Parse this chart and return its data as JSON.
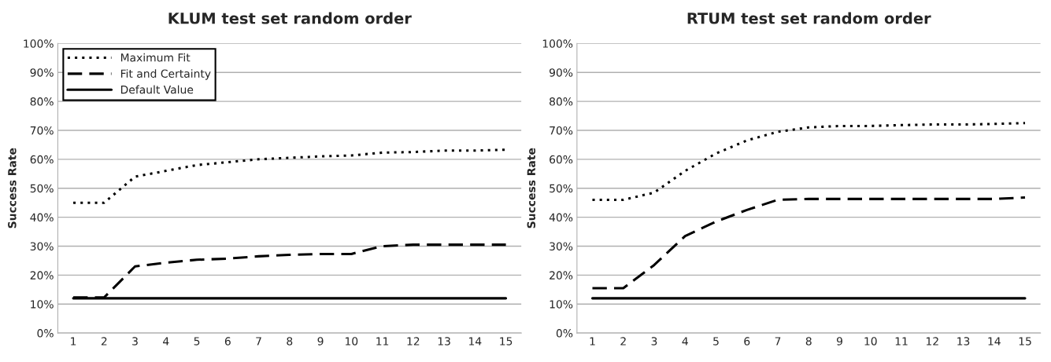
{
  "chart_data": [
    {
      "type": "line",
      "title": "KLUM test set random order",
      "ylabel": "Success Rate",
      "categories": [
        "1",
        "2",
        "3",
        "4",
        "5",
        "6",
        "7",
        "8",
        "9",
        "10",
        "11",
        "12",
        "13",
        "14",
        "15"
      ],
      "series": [
        {
          "name": "Maximum Fit",
          "color": "#000000",
          "line_style": "dotted",
          "values": [
            45,
            45,
            54,
            56,
            58,
            59,
            60,
            60.5,
            61,
            61.3,
            62.3,
            62.5,
            63,
            63,
            63.3
          ]
        },
        {
          "name": "Fit and Certainty",
          "color": "#000000",
          "line_style": "dashed",
          "values": [
            12.3,
            12.3,
            23,
            24.3,
            25.3,
            25.7,
            26.5,
            27,
            27.3,
            27.3,
            30,
            30.5,
            30.5,
            30.5,
            30.5
          ]
        },
        {
          "name": "Default Value",
          "color": "#000000",
          "line_style": "solid",
          "values": [
            12,
            12,
            12,
            12,
            12,
            12,
            12,
            12,
            12,
            12,
            12,
            12,
            12,
            12,
            12
          ]
        }
      ],
      "ylim": [
        0,
        100
      ],
      "yticks": [
        {
          "value": 0,
          "label": "0%"
        },
        {
          "value": 10,
          "label": "10%"
        },
        {
          "value": 20,
          "label": "20%"
        },
        {
          "value": 30,
          "label": "30%"
        },
        {
          "value": 40,
          "label": "40%"
        },
        {
          "value": 50,
          "label": "50%"
        },
        {
          "value": 60,
          "label": "60%"
        },
        {
          "value": 70,
          "label": "70%"
        },
        {
          "value": 80,
          "label": "80%"
        },
        {
          "value": 90,
          "label": "90%"
        },
        {
          "value": 100,
          "label": "100%"
        }
      ],
      "grid": "y",
      "legend": "top left",
      "marker": "none"
    },
    {
      "type": "line",
      "title": "RTUM test set random order",
      "ylabel": "Success Rate",
      "categories": [
        "1",
        "2",
        "3",
        "4",
        "5",
        "6",
        "7",
        "8",
        "9",
        "10",
        "11",
        "12",
        "13",
        "14",
        "15"
      ],
      "series": [
        {
          "color": "#000000",
          "line_style": "dotted",
          "values": [
            46,
            46,
            48.5,
            56,
            62,
            66.5,
            69.5,
            71,
            71.5,
            71.5,
            71.8,
            72,
            72,
            72.2,
            72.5
          ]
        },
        {
          "color": "#000000",
          "line_style": "dashed",
          "values": [
            15.5,
            15.5,
            23.5,
            33.5,
            38.5,
            42.5,
            46,
            46.3,
            46.3,
            46.3,
            46.3,
            46.3,
            46.3,
            46.3,
            46.8
          ]
        },
        {
          "color": "#000000",
          "line_style": "solid",
          "values": [
            12,
            12,
            12,
            12,
            12,
            12,
            12,
            12,
            12,
            12,
            12,
            12,
            12,
            12,
            12
          ]
        }
      ],
      "ylim": [
        0,
        100
      ],
      "yticks": [
        {
          "value": 0,
          "label": "0%"
        },
        {
          "value": 10,
          "label": "10%"
        },
        {
          "value": 20,
          "label": "20%"
        },
        {
          "value": 30,
          "label": "30%"
        },
        {
          "value": 40,
          "label": "40%"
        },
        {
          "value": 50,
          "label": "50%"
        },
        {
          "value": 60,
          "label": "60%"
        },
        {
          "value": 70,
          "label": "70%"
        },
        {
          "value": 80,
          "label": "80%"
        },
        {
          "value": 90,
          "label": "90%"
        },
        {
          "value": 100,
          "label": "100%"
        }
      ],
      "grid": "y",
      "legend": false,
      "marker": "none"
    }
  ]
}
